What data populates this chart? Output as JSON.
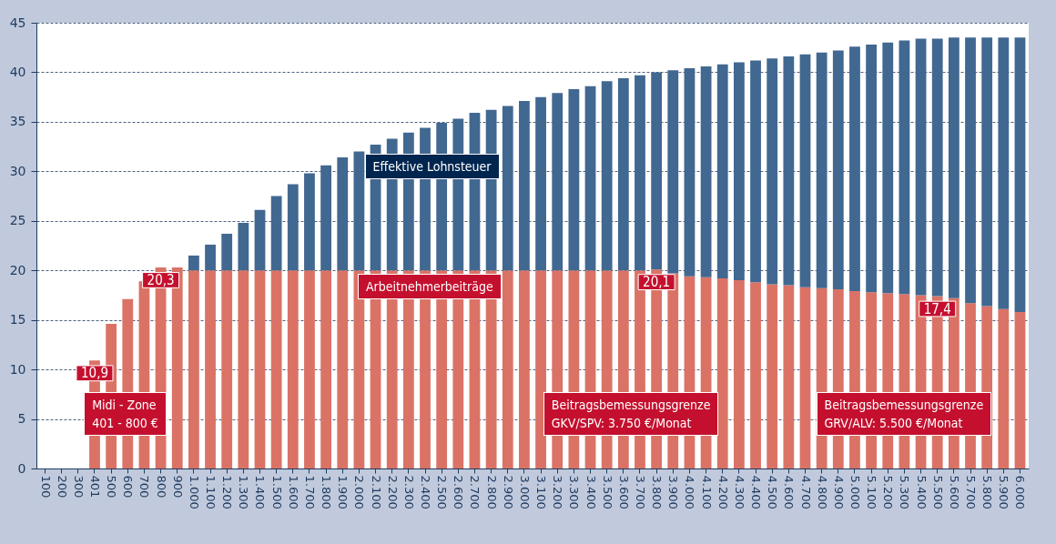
{
  "chart_data": {
    "type": "bar",
    "stacked": true,
    "legend": false,
    "grid": "y",
    "categories": [
      "100",
      "200",
      "300",
      "401",
      "500",
      "600",
      "700",
      "800",
      "900",
      "1.000",
      "1.100",
      "1.200",
      "1.300",
      "1.400",
      "1.500",
      "1.600",
      "1.700",
      "1.800",
      "1.900",
      "2.000",
      "2.100",
      "2.200",
      "2.300",
      "2.400",
      "2.500",
      "2.600",
      "2.700",
      "2.800",
      "2.900",
      "3.000",
      "3.100",
      "3.200",
      "3.300",
      "3.400",
      "3.500",
      "3.600",
      "3.700",
      "3.800",
      "3.900",
      "4.000",
      "4.100",
      "4.200",
      "4.300",
      "4.400",
      "4.500",
      "4.600",
      "4.700",
      "4.800",
      "4.900",
      "5.000",
      "5.100",
      "5.200",
      "5.300",
      "5.400",
      "5.500",
      "5.600",
      "5.700",
      "5.800",
      "5.900",
      "6.000"
    ],
    "ylim": [
      0,
      45
    ],
    "yticks": [
      0,
      5,
      10,
      15,
      20,
      25,
      30,
      35,
      40,
      45
    ],
    "series": [
      {
        "name": "Arbeitnehmerbeiträge",
        "color": "#da7366",
        "values": [
          null,
          null,
          null,
          10.9,
          14.6,
          17.1,
          18.9,
          20.3,
          20.3,
          20,
          20,
          20,
          20,
          20,
          20,
          20,
          20,
          20,
          20,
          20,
          20,
          20,
          20,
          20,
          20,
          20,
          20,
          20,
          20,
          20,
          20,
          20,
          20,
          20,
          20,
          20,
          20,
          20.1,
          19.7,
          19.4,
          19.3,
          19.2,
          19.0,
          18.8,
          18.6,
          18.5,
          18.3,
          18.2,
          18.1,
          17.9,
          17.8,
          17.7,
          17.6,
          17.5,
          17.4,
          17.2,
          16.7,
          16.4,
          16.1,
          15.8
        ],
        "value_labels": [
          null,
          null,
          null,
          "10,9",
          null,
          null,
          null,
          "20,3",
          null,
          null,
          null,
          null,
          null,
          null,
          null,
          null,
          null,
          null,
          null,
          null,
          null,
          null,
          null,
          null,
          null,
          null,
          null,
          null,
          null,
          null,
          null,
          null,
          null,
          null,
          null,
          null,
          null,
          "20,1",
          null,
          null,
          null,
          null,
          null,
          null,
          null,
          null,
          null,
          null,
          null,
          null,
          null,
          null,
          null,
          null,
          "17,4",
          null,
          null,
          null,
          null,
          null
        ]
      },
      {
        "name": "Effektive Lohnsteuer",
        "color": "#416890",
        "values": [
          null,
          null,
          null,
          null,
          null,
          null,
          null,
          null,
          null,
          1.5,
          2.6,
          3.7,
          4.8,
          6.1,
          7.5,
          8.7,
          9.8,
          10.6,
          11.4,
          12.0,
          12.7,
          13.3,
          13.9,
          14.4,
          14.9,
          15.3,
          15.9,
          16.2,
          16.6,
          17.1,
          17.5,
          17.9,
          18.3,
          18.6,
          19.1,
          19.4,
          19.7,
          19.9,
          20.5,
          21.0,
          21.3,
          21.6,
          22.0,
          22.4,
          22.8,
          23.1,
          23.5,
          23.8,
          24.1,
          24.7,
          25.0,
          25.3,
          25.6,
          25.9,
          26.0,
          26.3,
          26.8,
          27.1,
          27.4,
          27.7
        ]
      }
    ],
    "annotations": [
      "Midi - Zone\n401 - 800 €",
      "Beitragsbemessungsgrenze\nGKV/SPV: 3.750 €/Monat",
      "Beitragsbemessungsgrenze\nGRV/ALV: 5.500 €/Monat"
    ]
  }
}
